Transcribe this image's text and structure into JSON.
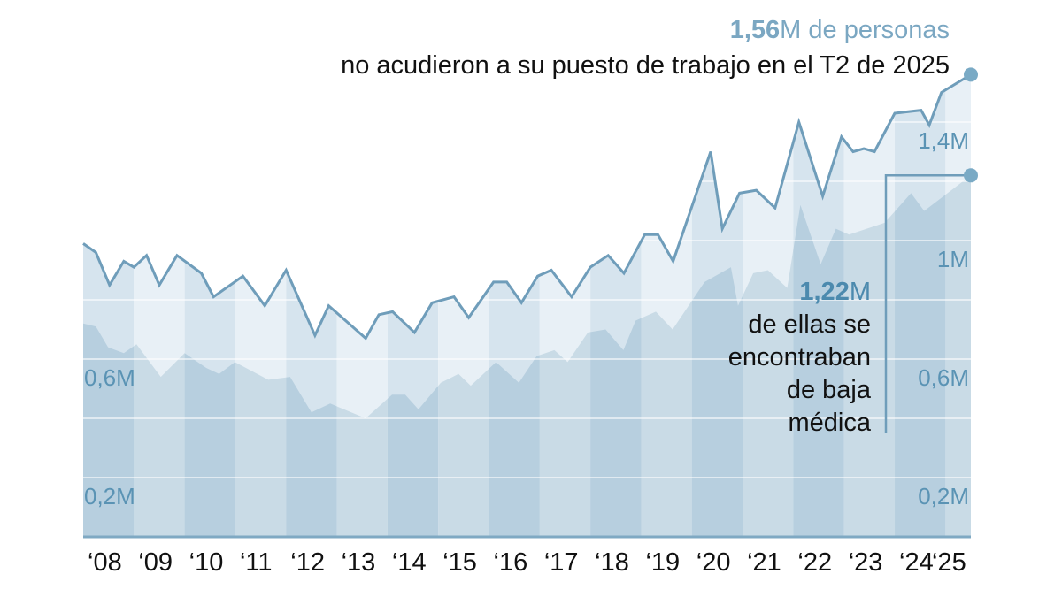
{
  "headline": {
    "value": "1,56",
    "unit_text": "M de personas",
    "subtitle": "no acudieron a su puesto de trabajo en el T2 de 2025"
  },
  "annotation": {
    "value": "1,22",
    "unit": "M",
    "lines": [
      "de ellas se",
      "encontraban",
      "de baja",
      "médica"
    ]
  },
  "colors": {
    "line": "#6f9dba",
    "upper_fill_light": "#e8f0f6",
    "upper_fill_dark": "#d6e4ee",
    "lower_fill_light": "#c9dbe6",
    "lower_fill_dark": "#b7cfdf",
    "axis": "#7fa9c3",
    "grid": "#ffffff"
  },
  "chart_data": {
    "type": "area",
    "title": "",
    "xlabel": "",
    "ylabel": "",
    "xlim": [
      2008.0,
      2025.5
    ],
    "ylim": [
      0,
      1.6
    ],
    "grid": true,
    "y_ticks": [
      0.2,
      0.4,
      0.6,
      0.8,
      1.0,
      1.2,
      1.4
    ],
    "y_tick_labels_left": [
      {
        "value": 0.2,
        "label": "0,2M"
      },
      {
        "value": 0.6,
        "label": "0,6M"
      }
    ],
    "y_tick_labels_right": [
      {
        "value": 0.2,
        "label": "0,2M"
      },
      {
        "value": 0.6,
        "label": "0,6M"
      },
      {
        "value": 1.0,
        "label": "1M"
      },
      {
        "value": 1.4,
        "label": "1,4M"
      }
    ],
    "x_tick_labels": [
      "‘08",
      "‘09",
      "‘10",
      "‘11",
      "‘12",
      "‘13",
      "‘14",
      "‘15",
      "‘16",
      "‘17",
      "‘18",
      "‘19",
      "‘20",
      "‘21",
      "‘22",
      "‘23",
      "‘24",
      "‘25"
    ],
    "series": [
      {
        "name": "Personas que no acudieron a su puesto de trabajo (millones)",
        "x": [
          2008.0,
          2008.25,
          2008.52,
          2008.8,
          2009.0,
          2009.25,
          2009.5,
          2009.85,
          2010.33,
          2010.57,
          2011.15,
          2011.58,
          2012.0,
          2012.57,
          2012.84,
          2013.57,
          2013.83,
          2014.1,
          2014.53,
          2014.88,
          2015.31,
          2015.6,
          2016.09,
          2016.35,
          2016.64,
          2016.96,
          2017.23,
          2017.63,
          2018.0,
          2018.35,
          2018.66,
          2019.07,
          2019.33,
          2019.63,
          2020.37,
          2020.6,
          2020.94,
          2021.27,
          2021.64,
          2022.11,
          2022.58,
          2022.95,
          2023.18,
          2023.39,
          2023.6,
          2024.0,
          2024.52,
          2024.68,
          2024.92,
          2025.5
        ],
        "values": [
          0.99,
          0.96,
          0.85,
          0.93,
          0.91,
          0.95,
          0.85,
          0.95,
          0.89,
          0.81,
          0.88,
          0.78,
          0.9,
          0.68,
          0.78,
          0.67,
          0.75,
          0.76,
          0.69,
          0.79,
          0.81,
          0.74,
          0.86,
          0.86,
          0.79,
          0.88,
          0.9,
          0.81,
          0.91,
          0.95,
          0.89,
          1.02,
          1.02,
          0.93,
          1.3,
          1.04,
          1.16,
          1.17,
          1.11,
          1.4,
          1.15,
          1.35,
          1.3,
          1.31,
          1.3,
          1.43,
          1.44,
          1.39,
          1.5,
          1.56
        ]
      },
      {
        "name": "De baja médica (millones)",
        "x": [
          2008.0,
          2008.25,
          2008.49,
          2008.8,
          2009.05,
          2009.53,
          2010.0,
          2010.43,
          2010.68,
          2010.99,
          2011.65,
          2012.08,
          2012.5,
          2012.87,
          2013.57,
          2014.09,
          2014.35,
          2014.61,
          2015.05,
          2015.4,
          2015.64,
          2016.14,
          2016.59,
          2016.94,
          2017.29,
          2017.55,
          2017.95,
          2018.3,
          2018.65,
          2018.89,
          2019.29,
          2019.62,
          2020.25,
          2020.77,
          2020.91,
          2021.21,
          2021.5,
          2021.88,
          2022.14,
          2022.54,
          2022.84,
          2023.1,
          2023.8,
          2024.32,
          2024.58,
          2025.5
        ],
        "values": [
          0.72,
          0.71,
          0.64,
          0.62,
          0.65,
          0.54,
          0.62,
          0.57,
          0.55,
          0.59,
          0.53,
          0.54,
          0.42,
          0.45,
          0.4,
          0.48,
          0.48,
          0.43,
          0.52,
          0.55,
          0.51,
          0.59,
          0.52,
          0.61,
          0.63,
          0.59,
          0.69,
          0.7,
          0.63,
          0.73,
          0.76,
          0.7,
          0.86,
          0.91,
          0.78,
          0.89,
          0.9,
          0.84,
          1.12,
          0.92,
          1.04,
          1.02,
          1.06,
          1.16,
          1.1,
          1.22
        ]
      }
    ]
  }
}
